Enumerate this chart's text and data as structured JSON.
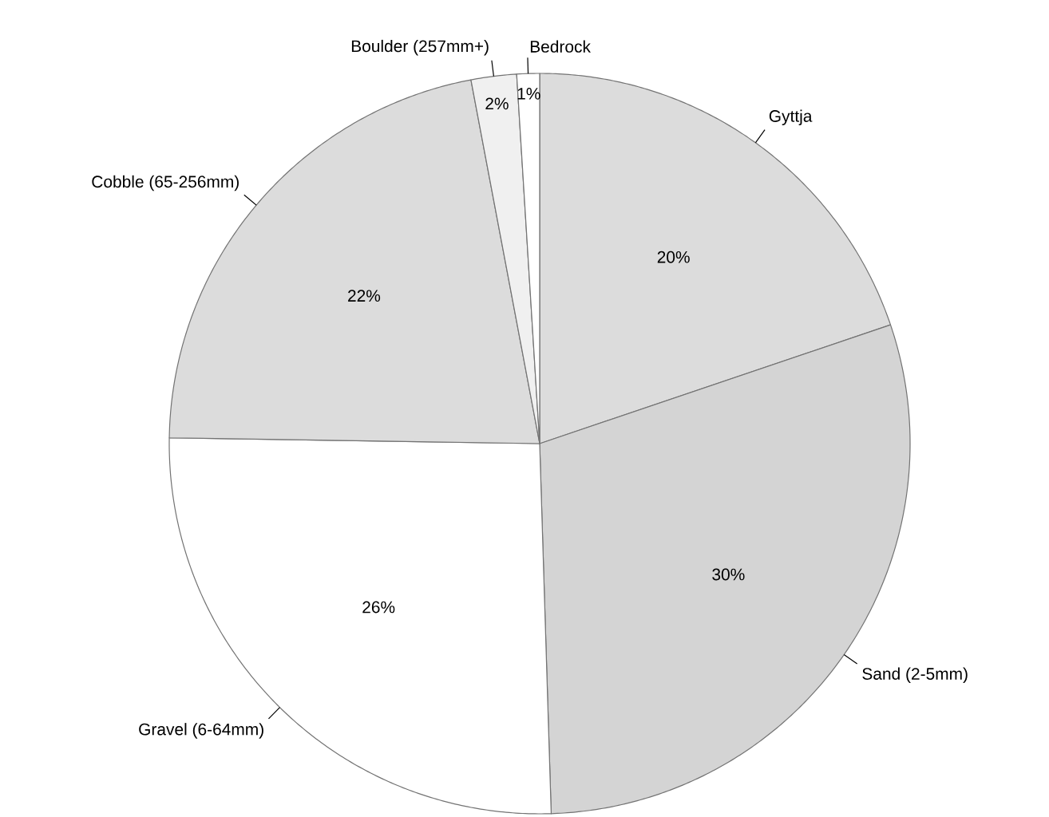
{
  "chart_data": {
    "type": "pie",
    "categories": [
      "Gyttja",
      "Sand (2-5mm)",
      "Gravel (6-64mm)",
      "Cobble (65-256mm)",
      "Boulder (257mm+)",
      "Bedrock"
    ],
    "values": [
      20,
      30,
      26,
      22,
      2,
      1
    ],
    "value_labels": [
      "20%",
      "30%",
      "26%",
      "22%",
      "2%",
      "1%"
    ],
    "colors": [
      "#dcdcdc",
      "#d4d4d4",
      "#ffffff",
      "#dcdcdc",
      "#f0f0f0",
      "#ffffff"
    ],
    "legend": false
  }
}
